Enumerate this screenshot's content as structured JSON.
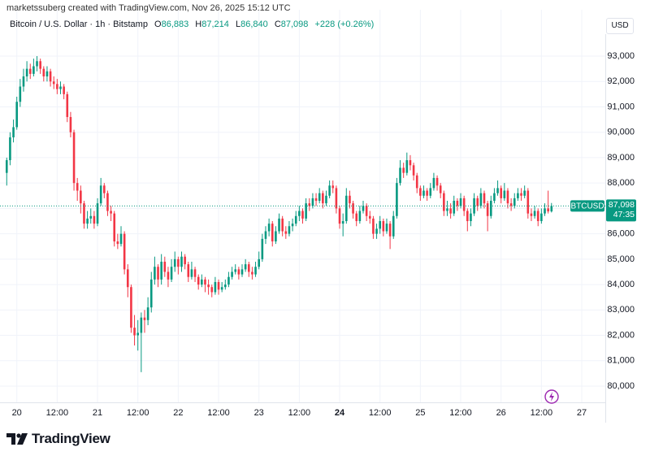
{
  "stamp": "marketssuberg created with TradingView.com, Nov 26, 2025 15:12 UTC",
  "currency": "USD",
  "brand": "TradingView",
  "chart_data": {
    "type": "candlestick",
    "legend": {
      "title": "Bitcoin / U.S. Dollar · 1h · Bitstamp",
      "items": [
        {
          "key": "O",
          "value": "86,883"
        },
        {
          "key": "H",
          "value": "87,214"
        },
        {
          "key": "L",
          "value": "86,840"
        },
        {
          "key": "C",
          "value": "87,098"
        }
      ],
      "change": "+228 (+0.26%)"
    },
    "price_tag": {
      "symbol": "BTCUSD",
      "price": "87,098",
      "countdown": "47:35"
    },
    "up_color": "#089981",
    "down_color": "#f23645",
    "grid": true,
    "xlim": [
      "19 19:00",
      "27 07:00"
    ],
    "xticks": [
      {
        "value": "20 00:00",
        "label": "20"
      },
      {
        "value": "20 12:00",
        "label": "12:00"
      },
      {
        "value": "21 00:00",
        "label": "21"
      },
      {
        "value": "21 12:00",
        "label": "12:00"
      },
      {
        "value": "22 00:00",
        "label": "22"
      },
      {
        "value": "22 12:00",
        "label": "12:00"
      },
      {
        "value": "23 00:00",
        "label": "23"
      },
      {
        "value": "23 12:00",
        "label": "12:00"
      },
      {
        "value": "24 00:00",
        "label": "24",
        "bold": true
      },
      {
        "value": "24 12:00",
        "label": "12:00"
      },
      {
        "value": "25 00:00",
        "label": "25"
      },
      {
        "value": "25 12:00",
        "label": "12:00"
      },
      {
        "value": "26 00:00",
        "label": "26"
      },
      {
        "value": "26 12:00",
        "label": "12:00"
      },
      {
        "value": "27 00:00",
        "label": "27"
      }
    ],
    "ylim": [
      79360,
      93865
    ],
    "yticks": [
      {
        "value": 80000,
        "label": "80,000"
      },
      {
        "value": 81000,
        "label": "81,000"
      },
      {
        "value": 82000,
        "label": "82,000"
      },
      {
        "value": 83000,
        "label": "83,000"
      },
      {
        "value": 84000,
        "label": "84,000"
      },
      {
        "value": 85000,
        "label": "85,000"
      },
      {
        "value": 86000,
        "label": "86,000"
      },
      {
        "value": 87000,
        "label": "87,000"
      },
      {
        "value": 88000,
        "label": "88,000"
      },
      {
        "value": 89000,
        "label": "89,000"
      },
      {
        "value": 90000,
        "label": "90,000"
      },
      {
        "value": 91000,
        "label": "91,000"
      },
      {
        "value": 92000,
        "label": "92,000"
      },
      {
        "value": 93000,
        "label": "93,000"
      }
    ],
    "x": [
      "19 21:00",
      "19 22:00",
      "19 23:00",
      "20 00:00",
      "20 01:00",
      "20 02:00",
      "20 03:00",
      "20 04:00",
      "20 05:00",
      "20 06:00",
      "20 07:00",
      "20 08:00",
      "20 09:00",
      "20 10:00",
      "20 11:00",
      "20 12:00",
      "20 13:00",
      "20 14:00",
      "20 15:00",
      "20 16:00",
      "20 17:00",
      "20 18:00",
      "20 19:00",
      "20 20:00",
      "20 21:00",
      "20 22:00",
      "20 23:00",
      "21 00:00",
      "21 01:00",
      "21 02:00",
      "21 03:00",
      "21 04:00",
      "21 05:00",
      "21 06:00",
      "21 07:00",
      "21 08:00",
      "21 09:00",
      "21 10:00",
      "21 11:00",
      "21 12:00",
      "21 13:00",
      "21 14:00",
      "21 15:00",
      "21 16:00",
      "21 17:00",
      "21 18:00",
      "21 19:00",
      "21 20:00",
      "21 21:00",
      "21 22:00",
      "21 23:00",
      "22 00:00",
      "22 01:00",
      "22 02:00",
      "22 03:00",
      "22 04:00",
      "22 05:00",
      "22 06:00",
      "22 07:00",
      "22 08:00",
      "22 09:00",
      "22 10:00",
      "22 11:00",
      "22 12:00",
      "22 13:00",
      "22 14:00",
      "22 15:00",
      "22 16:00",
      "22 17:00",
      "22 18:00",
      "22 19:00",
      "22 20:00",
      "22 21:00",
      "22 22:00",
      "22 23:00",
      "23 00:00",
      "23 01:00",
      "23 02:00",
      "23 03:00",
      "23 04:00",
      "23 05:00",
      "23 06:00",
      "23 07:00",
      "23 08:00",
      "23 09:00",
      "23 10:00",
      "23 11:00",
      "23 12:00",
      "23 13:00",
      "23 14:00",
      "23 15:00",
      "23 16:00",
      "23 17:00",
      "23 18:00",
      "23 19:00",
      "23 20:00",
      "23 21:00",
      "23 22:00",
      "23 23:00",
      "24 00:00",
      "24 01:00",
      "24 02:00",
      "24 03:00",
      "24 04:00",
      "24 05:00",
      "24 06:00",
      "24 07:00",
      "24 08:00",
      "24 09:00",
      "24 10:00",
      "24 11:00",
      "24 12:00",
      "24 13:00",
      "24 14:00",
      "24 15:00",
      "24 16:00",
      "24 17:00",
      "24 18:00",
      "24 19:00",
      "24 20:00",
      "24 21:00",
      "24 22:00",
      "24 23:00",
      "25 00:00",
      "25 01:00",
      "25 02:00",
      "25 03:00",
      "25 04:00",
      "25 05:00",
      "25 06:00",
      "25 07:00",
      "25 08:00",
      "25 09:00",
      "25 10:00",
      "25 11:00",
      "25 12:00",
      "25 13:00",
      "25 14:00",
      "25 15:00",
      "25 16:00",
      "25 17:00",
      "25 18:00",
      "25 19:00",
      "25 20:00",
      "25 21:00",
      "25 22:00",
      "25 23:00",
      "26 00:00",
      "26 01:00",
      "26 02:00",
      "26 03:00",
      "26 04:00",
      "26 05:00",
      "26 06:00",
      "26 07:00",
      "26 08:00",
      "26 09:00",
      "26 10:00",
      "26 11:00",
      "26 12:00",
      "26 13:00",
      "26 14:00",
      "26 15:00"
    ],
    "open": [
      88400,
      88900,
      89800,
      90200,
      91200,
      91800,
      92200,
      92500,
      92300,
      92600,
      92800,
      92500,
      92200,
      92400,
      92000,
      91900,
      91700,
      91800,
      91500,
      90600,
      90000,
      88000,
      87700,
      87200,
      86400,
      86600,
      86700,
      86400,
      87200,
      87900,
      87600,
      86900,
      86800,
      85700,
      85600,
      86000,
      84600,
      83900,
      82300,
      82000,
      82100,
      82700,
      82600,
      83100,
      84200,
      84700,
      84200,
      84900,
      84500,
      84200,
      84700,
      85000,
      84700,
      85100,
      84800,
      84300,
      84600,
      84300,
      84000,
      84200,
      84000,
      83900,
      83700,
      84100,
      83800,
      83900,
      84000,
      84300,
      84500,
      84600,
      84400,
      84600,
      84800,
      84500,
      84400,
      84700,
      85000,
      85800,
      86100,
      86400,
      85700,
      86100,
      86600,
      86100,
      86000,
      86300,
      86400,
      86700,
      86900,
      86600,
      87200,
      87100,
      87400,
      87300,
      87600,
      87200,
      87500,
      87900,
      87800,
      87000,
      86400,
      86500,
      87500,
      87200,
      86800,
      86500,
      86900,
      87100,
      86700,
      86600,
      86000,
      86200,
      86500,
      86100,
      86400,
      85900,
      86700,
      88000,
      88600,
      88400,
      88900,
      88700,
      88300,
      87800,
      87500,
      87700,
      87500,
      87800,
      88200,
      87900,
      87600,
      86900,
      87000,
      86800,
      87300,
      87100,
      87400,
      86900,
      86500,
      86800,
      87400,
      87100,
      87600,
      87200,
      86700,
      87300,
      87600,
      87800,
      87400,
      87700,
      87200,
      87100,
      87400,
      87600,
      87500,
      87700,
      86800,
      86700,
      86900,
      86500,
      86800,
      87000,
      86883
    ],
    "high": [
      89000,
      90000,
      90500,
      91400,
      92100,
      92500,
      92800,
      92700,
      92900,
      93000,
      92900,
      92600,
      92600,
      92500,
      92200,
      92100,
      92000,
      91900,
      91600,
      90800,
      90100,
      88200,
      87900,
      87300,
      86900,
      87000,
      86900,
      87400,
      88200,
      88000,
      87700,
      87100,
      86900,
      86000,
      86300,
      86100,
      84800,
      84000,
      82800,
      82600,
      82900,
      83000,
      83500,
      84500,
      85100,
      84800,
      85200,
      85100,
      84700,
      85000,
      85300,
      85100,
      85300,
      85200,
      84900,
      84900,
      84700,
      84400,
      84400,
      84300,
      84200,
      84000,
      84300,
      84200,
      84100,
      84200,
      84500,
      84700,
      84800,
      84700,
      84800,
      85000,
      84900,
      84700,
      84900,
      85300,
      86000,
      86300,
      86600,
      86500,
      86300,
      86800,
      86700,
      86300,
      86500,
      86600,
      86900,
      87100,
      87000,
      87400,
      87400,
      87600,
      87600,
      87800,
      87700,
      87700,
      88100,
      88100,
      87900,
      87100,
      86800,
      87800,
      87700,
      87300,
      86900,
      87100,
      87300,
      87200,
      86900,
      86700,
      86400,
      86700,
      86600,
      86600,
      86500,
      86900,
      88200,
      88900,
      88800,
      89200,
      89100,
      88800,
      88400,
      87900,
      87900,
      87800,
      88000,
      88400,
      88300,
      88000,
      87700,
      87300,
      87200,
      87500,
      87400,
      87600,
      87500,
      87000,
      87000,
      87600,
      87500,
      87800,
      87700,
      87300,
      87500,
      87800,
      88100,
      87900,
      88000,
      87800,
      87400,
      87600,
      87800,
      87800,
      87900,
      87800,
      87000,
      87100,
      87000,
      87000,
      87200,
      87700,
      87214
    ],
    "low": [
      87900,
      88700,
      89600,
      90100,
      91000,
      91600,
      92000,
      92100,
      92200,
      92400,
      92300,
      92000,
      92000,
      91800,
      91700,
      91500,
      91500,
      91300,
      90400,
      89800,
      87700,
      87300,
      86800,
      86200,
      86200,
      86400,
      86200,
      86300,
      87100,
      87400,
      86700,
      86500,
      85500,
      85400,
      85500,
      84400,
      83500,
      82100,
      81600,
      81400,
      80550,
      82100,
      82400,
      82900,
      84000,
      83900,
      84000,
      84300,
      83900,
      84100,
      84500,
      84400,
      84500,
      84600,
      84100,
      84200,
      84100,
      83800,
      83900,
      83700,
      83600,
      83500,
      83600,
      83600,
      83700,
      83800,
      83900,
      84200,
      84400,
      84200,
      84300,
      84500,
      84300,
      84200,
      84300,
      84600,
      84900,
      85600,
      85900,
      85500,
      85600,
      86000,
      85900,
      85800,
      85900,
      86100,
      86300,
      86500,
      86400,
      86500,
      86900,
      87000,
      87100,
      87200,
      87000,
      87100,
      87400,
      87600,
      86800,
      86200,
      85900,
      86400,
      87000,
      86600,
      86300,
      86400,
      86800,
      86500,
      86400,
      85800,
      85800,
      86000,
      85900,
      86000,
      85400,
      85800,
      86600,
      87900,
      88200,
      88300,
      88500,
      88100,
      87600,
      87300,
      87400,
      87300,
      87400,
      87700,
      87700,
      87400,
      86700,
      86700,
      86600,
      86700,
      86900,
      87000,
      86700,
      86100,
      86300,
      86700,
      86900,
      87000,
      87000,
      86100,
      86600,
      87200,
      87500,
      87200,
      87300,
      87000,
      86900,
      87000,
      87300,
      87300,
      87400,
      86600,
      86500,
      86600,
      86300,
      86400,
      86700,
      86800,
      86840
    ],
    "close": [
      88900,
      89800,
      90200,
      91200,
      91800,
      92200,
      92500,
      92300,
      92600,
      92800,
      92500,
      92200,
      92400,
      92000,
      91900,
      91700,
      91800,
      91500,
      90600,
      90000,
      88000,
      87700,
      87200,
      86400,
      86600,
      86700,
      86400,
      87200,
      87900,
      87600,
      86900,
      86800,
      85700,
      85600,
      86000,
      84600,
      83900,
      82300,
      82000,
      82100,
      82700,
      82600,
      83100,
      84200,
      84700,
      84200,
      84900,
      84500,
      84200,
      84700,
      85000,
      84700,
      85100,
      84800,
      84300,
      84600,
      84300,
      84000,
      84200,
      84000,
      83900,
      83700,
      84100,
      83800,
      83900,
      84000,
      84300,
      84500,
      84600,
      84400,
      84600,
      84800,
      84500,
      84400,
      84700,
      85000,
      85800,
      86100,
      86400,
      85700,
      86100,
      86600,
      86100,
      86000,
      86300,
      86400,
      86700,
      86900,
      86600,
      87200,
      87100,
      87400,
      87300,
      87600,
      87200,
      87500,
      87900,
      87800,
      87000,
      86400,
      86500,
      87500,
      87200,
      86800,
      86500,
      86900,
      87100,
      86700,
      86600,
      86000,
      86200,
      86500,
      86100,
      86400,
      85900,
      86700,
      88000,
      88600,
      88400,
      88900,
      88700,
      88300,
      87800,
      87500,
      87700,
      87500,
      87800,
      88200,
      87900,
      87600,
      86900,
      87000,
      86800,
      87300,
      87100,
      87400,
      86900,
      86500,
      86800,
      87400,
      87100,
      87600,
      87200,
      86700,
      87300,
      87600,
      87800,
      87400,
      87700,
      87200,
      87100,
      87400,
      87600,
      87500,
      87700,
      86800,
      86700,
      86900,
      86500,
      86800,
      87000,
      86883,
      87098
    ]
  }
}
